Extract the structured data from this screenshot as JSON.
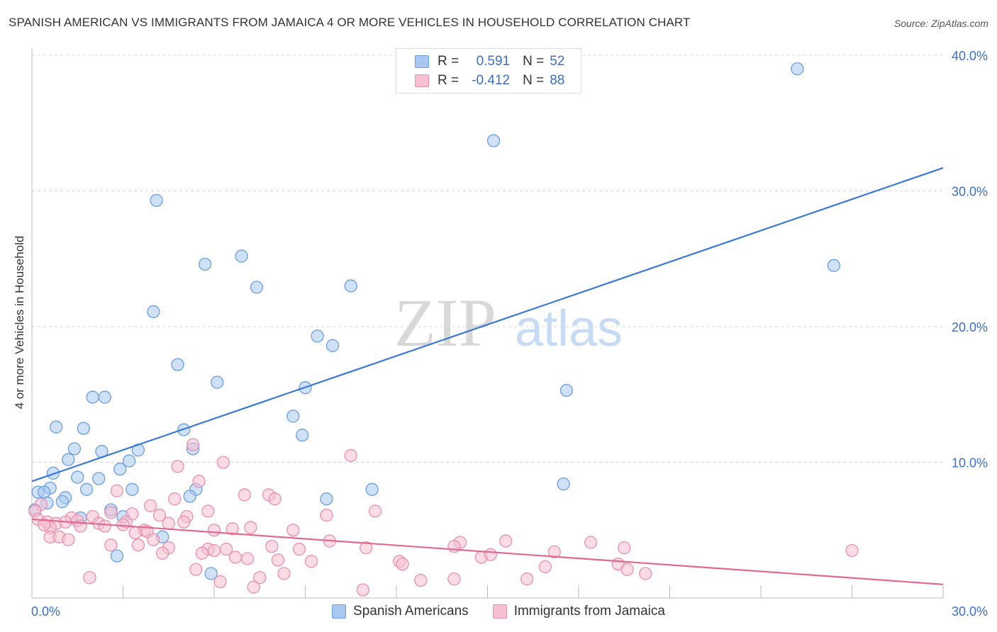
{
  "title": "SPANISH AMERICAN VS IMMIGRANTS FROM JAMAICA 4 OR MORE VEHICLES IN HOUSEHOLD CORRELATION CHART",
  "source": "Source: ZipAtlas.com",
  "watermark": {
    "zip": "ZIP",
    "atlas": "atlas"
  },
  "legend": {
    "rows": [
      {
        "r_label": "R =",
        "r_value": "0.591",
        "n_label": "N =",
        "n_value": "52",
        "color": "#a8c8f0",
        "border": "#6b9ee0"
      },
      {
        "r_label": "R =",
        "r_value": "-0.412",
        "n_label": "N =",
        "n_value": "88",
        "color": "#f8c0d0",
        "border": "#e890ae"
      }
    ]
  },
  "bottom_legend": [
    "Spanish Americans",
    "Immigrants from Jamaica"
  ],
  "colors": {
    "blue_fill": "#a8c8f0",
    "blue_stroke": "#6b9ee0",
    "blue_line": "#3a78d8",
    "pink_fill": "#f8c0d0",
    "pink_stroke": "#e890ae",
    "pink_line": "#e06892",
    "axis_text": "#3b6fc9",
    "grid": "#d8d8d8"
  },
  "chart_data": {
    "type": "scatter",
    "title": "SPANISH AMERICAN VS IMMIGRANTS FROM JAMAICA 4 OR MORE VEHICLES IN HOUSEHOLD CORRELATION CHART",
    "xlabel": "",
    "ylabel": "4 or more Vehicles in Household",
    "xlim": [
      0,
      30
    ],
    "ylim": [
      0,
      40
    ],
    "x_tick_labels": [
      "0.0%",
      "30.0%"
    ],
    "y_ticks": [
      10,
      20,
      30,
      40
    ],
    "y_tick_labels": [
      "10.0%",
      "20.0%",
      "30.0%",
      "40.0%"
    ],
    "grid": true,
    "legend_placement": "top-center",
    "series": [
      {
        "name": "Spanish Americans",
        "r": 0.591,
        "n": 52,
        "trend": [
          [
            0,
            8.6
          ],
          [
            30,
            31.7
          ]
        ],
        "points": [
          [
            25.2,
            39.0
          ],
          [
            15.2,
            33.7
          ],
          [
            4.1,
            29.3
          ],
          [
            6.9,
            25.2
          ],
          [
            5.7,
            24.6
          ],
          [
            26.4,
            24.5
          ],
          [
            7.4,
            22.9
          ],
          [
            10.5,
            23.0
          ],
          [
            4.0,
            21.1
          ],
          [
            9.4,
            19.3
          ],
          [
            9.9,
            18.6
          ],
          [
            4.8,
            17.2
          ],
          [
            6.1,
            15.9
          ],
          [
            9.0,
            15.5
          ],
          [
            17.6,
            15.3
          ],
          [
            2.0,
            14.8
          ],
          [
            2.4,
            14.8
          ],
          [
            8.6,
            13.4
          ],
          [
            0.8,
            12.6
          ],
          [
            1.7,
            12.5
          ],
          [
            5.0,
            12.4
          ],
          [
            8.9,
            12.0
          ],
          [
            1.4,
            11.0
          ],
          [
            2.3,
            10.8
          ],
          [
            3.5,
            10.9
          ],
          [
            5.3,
            11.0
          ],
          [
            1.2,
            10.2
          ],
          [
            3.2,
            10.1
          ],
          [
            0.7,
            9.2
          ],
          [
            2.9,
            9.5
          ],
          [
            1.5,
            8.9
          ],
          [
            2.2,
            8.8
          ],
          [
            0.6,
            8.1
          ],
          [
            1.8,
            8.0
          ],
          [
            3.3,
            8.0
          ],
          [
            5.4,
            8.0
          ],
          [
            0.2,
            7.8
          ],
          [
            0.4,
            7.8
          ],
          [
            1.1,
            7.4
          ],
          [
            5.2,
            7.5
          ],
          [
            9.7,
            7.3
          ],
          [
            11.2,
            8.0
          ],
          [
            17.5,
            8.4
          ],
          [
            0.5,
            7.0
          ],
          [
            1.0,
            7.1
          ],
          [
            0.1,
            6.5
          ],
          [
            2.6,
            6.5
          ],
          [
            3.0,
            6.0
          ],
          [
            1.6,
            5.9
          ],
          [
            4.3,
            4.5
          ],
          [
            2.8,
            3.1
          ],
          [
            5.9,
            1.8
          ]
        ]
      },
      {
        "name": "Immigrants from Jamaica",
        "r": -0.412,
        "n": 88,
        "trend": [
          [
            0,
            5.8
          ],
          [
            30,
            1.0
          ]
        ],
        "points": [
          [
            10.5,
            10.5
          ],
          [
            5.3,
            11.3
          ],
          [
            6.3,
            10.0
          ],
          [
            4.8,
            9.7
          ],
          [
            5.5,
            8.6
          ],
          [
            2.8,
            7.9
          ],
          [
            7.0,
            7.6
          ],
          [
            7.8,
            7.6
          ],
          [
            8.0,
            7.3
          ],
          [
            4.7,
            7.3
          ],
          [
            3.9,
            6.8
          ],
          [
            0.3,
            6.9
          ],
          [
            0.1,
            6.4
          ],
          [
            2.6,
            6.3
          ],
          [
            3.3,
            6.2
          ],
          [
            4.2,
            6.1
          ],
          [
            5.8,
            6.4
          ],
          [
            9.7,
            6.1
          ],
          [
            11.3,
            6.4
          ],
          [
            5.1,
            6.0
          ],
          [
            1.3,
            5.9
          ],
          [
            2.0,
            6.0
          ],
          [
            0.2,
            5.8
          ],
          [
            0.5,
            5.6
          ],
          [
            0.8,
            5.5
          ],
          [
            1.1,
            5.6
          ],
          [
            1.5,
            5.7
          ],
          [
            2.2,
            5.5
          ],
          [
            3.1,
            5.6
          ],
          [
            4.5,
            5.5
          ],
          [
            5.0,
            5.6
          ],
          [
            0.6,
            5.2
          ],
          [
            0.4,
            5.4
          ],
          [
            1.6,
            5.3
          ],
          [
            2.4,
            5.3
          ],
          [
            3.0,
            5.4
          ],
          [
            3.7,
            5.0
          ],
          [
            6.0,
            5.0
          ],
          [
            6.6,
            5.1
          ],
          [
            7.2,
            5.2
          ],
          [
            8.6,
            5.0
          ],
          [
            3.4,
            4.8
          ],
          [
            3.8,
            4.9
          ],
          [
            0.6,
            4.5
          ],
          [
            0.9,
            4.5
          ],
          [
            1.2,
            4.3
          ],
          [
            4.0,
            4.3
          ],
          [
            6.4,
            3.6
          ],
          [
            9.8,
            4.2
          ],
          [
            14.1,
            4.1
          ],
          [
            15.6,
            4.2
          ],
          [
            18.4,
            4.1
          ],
          [
            2.6,
            3.9
          ],
          [
            3.5,
            3.9
          ],
          [
            4.5,
            3.7
          ],
          [
            5.8,
            3.6
          ],
          [
            7.9,
            3.8
          ],
          [
            8.8,
            3.6
          ],
          [
            11.0,
            3.7
          ],
          [
            13.9,
            3.8
          ],
          [
            19.5,
            3.7
          ],
          [
            4.3,
            3.3
          ],
          [
            5.6,
            3.3
          ],
          [
            6.0,
            3.5
          ],
          [
            6.7,
            3.0
          ],
          [
            7.1,
            2.9
          ],
          [
            8.1,
            2.8
          ],
          [
            9.2,
            2.7
          ],
          [
            12.1,
            2.7
          ],
          [
            14.8,
            3.0
          ],
          [
            15.1,
            3.2
          ],
          [
            17.2,
            3.4
          ],
          [
            27.0,
            3.5
          ],
          [
            12.2,
            2.5
          ],
          [
            16.9,
            2.3
          ],
          [
            19.3,
            2.5
          ],
          [
            19.6,
            2.1
          ],
          [
            20.2,
            1.8
          ],
          [
            8.3,
            1.8
          ],
          [
            5.4,
            2.1
          ],
          [
            7.5,
            1.5
          ],
          [
            1.9,
            1.5
          ],
          [
            6.2,
            1.2
          ],
          [
            12.8,
            1.3
          ],
          [
            13.9,
            1.4
          ],
          [
            16.3,
            1.4
          ],
          [
            7.3,
            0.8
          ],
          [
            10.9,
            0.6
          ]
        ]
      }
    ]
  }
}
